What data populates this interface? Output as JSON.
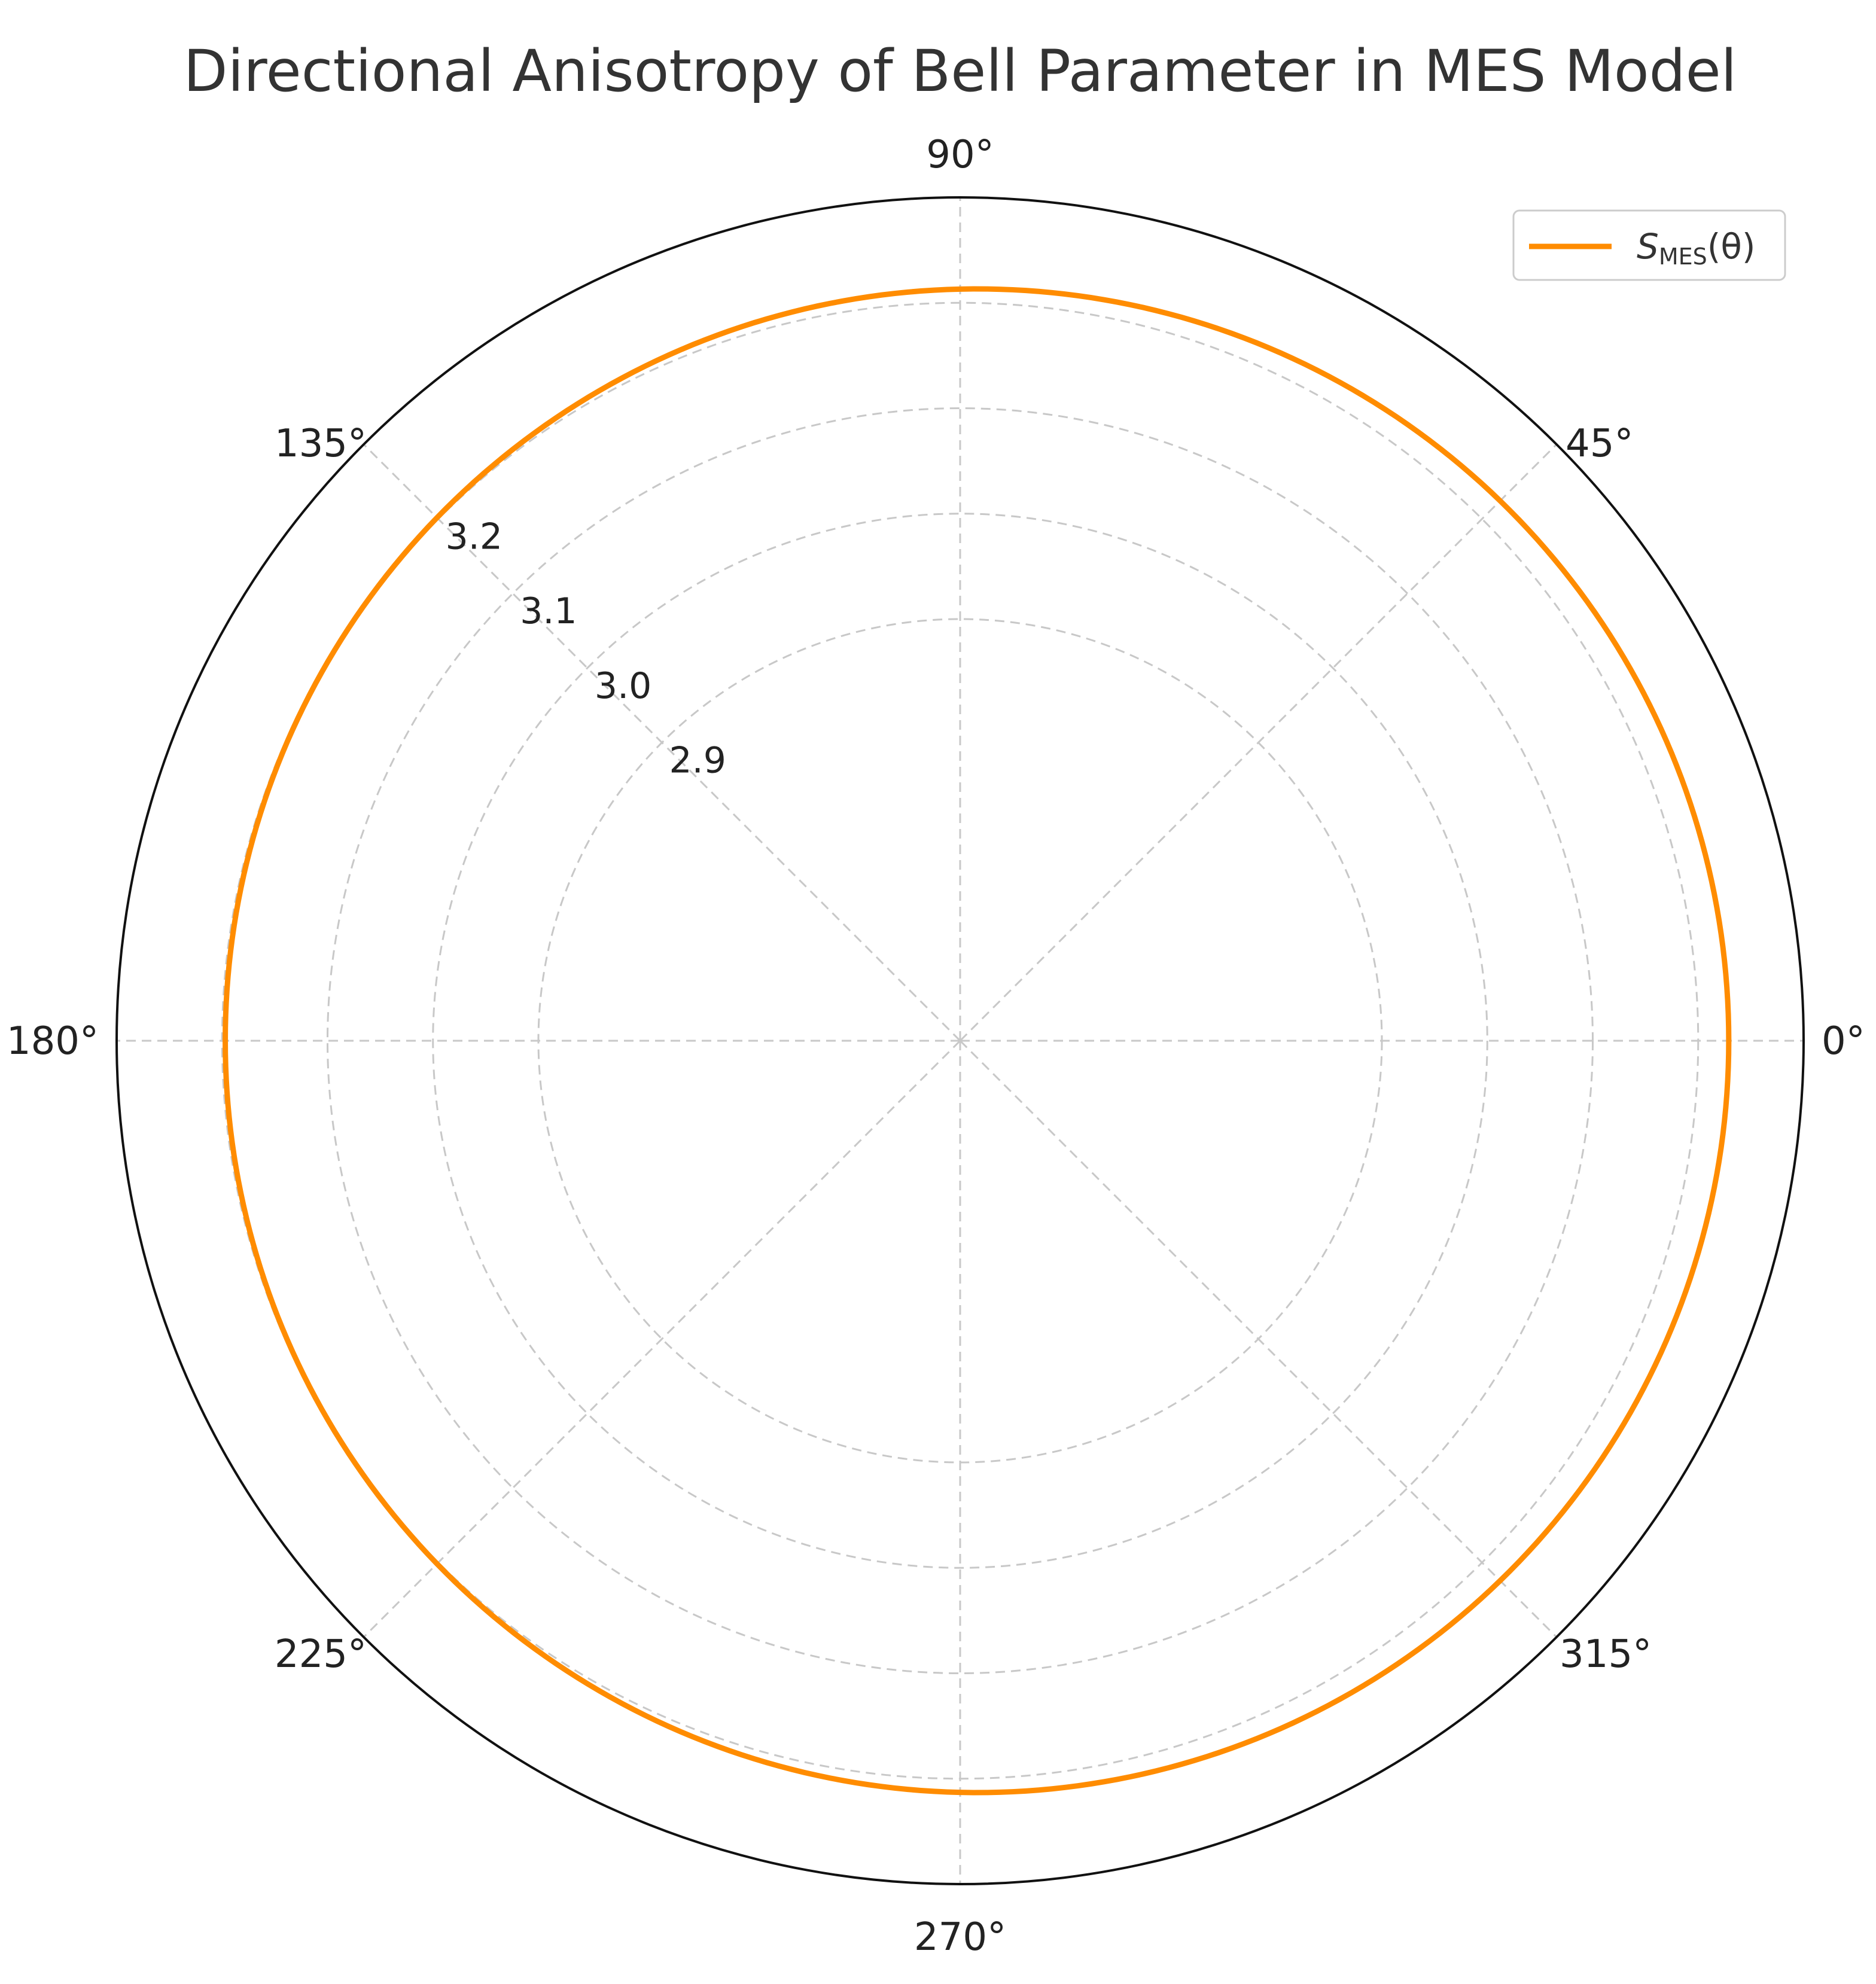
{
  "chart_data": {
    "type": "polar-line",
    "title": "Directional Anisotropy of Bell Parameter in MES Model",
    "angle_ticks": [
      "0°",
      "45°",
      "90°",
      "135°",
      "180°",
      "225°",
      "270°",
      "315°"
    ],
    "angle_tick_values_deg": [
      0,
      45,
      90,
      135,
      180,
      225,
      270,
      315
    ],
    "radial_ticks": [
      "2.9",
      "3.0",
      "3.1",
      "3.2"
    ],
    "radial_tick_values": [
      2.9,
      3.0,
      3.1,
      3.2
    ],
    "rlim": [
      2.5,
      3.3
    ],
    "grid": true,
    "legend_position": "top-right",
    "series": [
      {
        "name": "S_MES(θ)",
        "color": "#ff8c00",
        "model": "r = base + amp * cos(θ - phase_deg)",
        "base": 3.213,
        "amp": 0.016,
        "phase_deg": 0
      }
    ],
    "legend": {
      "symbol": "S",
      "subscript": "MES",
      "argument": "(θ)"
    }
  }
}
